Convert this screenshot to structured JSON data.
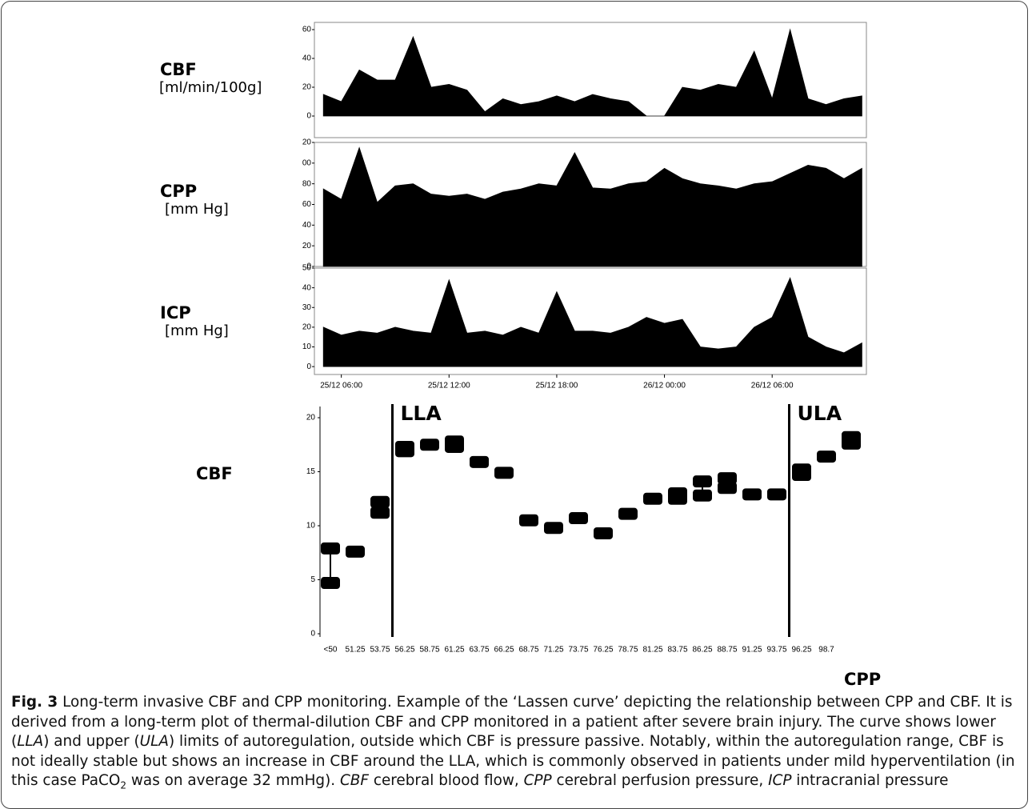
{
  "chart_data": [
    {
      "type": "area",
      "ylabel": "CBF",
      "yunit": "[ml/min/100g]",
      "color": "#000000",
      "x": [
        "25/12 05:00",
        "25/12 06:00",
        "25/12 07:00",
        "25/12 08:00",
        "25/12 09:00",
        "25/12 10:00",
        "25/12 11:00",
        "25/12 12:00",
        "25/12 13:00",
        "25/12 14:00",
        "25/12 15:00",
        "25/12 16:00",
        "25/12 17:00",
        "25/12 18:00",
        "25/12 19:00",
        "25/12 20:00",
        "25/12 21:00",
        "25/12 22:00",
        "25/12 23:00",
        "26/12 00:00",
        "26/12 01:00",
        "26/12 02:00",
        "26/12 03:00",
        "26/12 04:00",
        "26/12 05:00",
        "26/12 06:00",
        "26/12 07:00",
        "26/12 08:00",
        "26/12 09:00",
        "26/12 10:00",
        "26/12 11:00"
      ],
      "values": [
        15,
        10,
        32,
        25,
        25,
        55,
        20,
        22,
        18,
        3,
        12,
        8,
        10,
        14,
        10,
        15,
        12,
        10,
        0,
        0,
        20,
        18,
        22,
        20,
        45,
        12,
        60,
        12,
        8,
        12,
        14
      ],
      "xlim": [
        "25/12 04:30",
        "26/12 11:15"
      ],
      "ylim": [
        -15,
        65
      ],
      "yticks": [
        0,
        20,
        40,
        60
      ]
    },
    {
      "type": "area",
      "ylabel": "CPP",
      "yunit": "[mm Hg]",
      "color": "#000000",
      "x": [
        "25/12 05:00",
        "25/12 06:00",
        "25/12 07:00",
        "25/12 08:00",
        "25/12 09:00",
        "25/12 10:00",
        "25/12 11:00",
        "25/12 12:00",
        "25/12 13:00",
        "25/12 14:00",
        "25/12 15:00",
        "25/12 16:00",
        "25/12 17:00",
        "25/12 18:00",
        "25/12 19:00",
        "25/12 20:00",
        "25/12 21:00",
        "25/12 22:00",
        "25/12 23:00",
        "26/12 00:00",
        "26/12 01:00",
        "26/12 02:00",
        "26/12 03:00",
        "26/12 04:00",
        "26/12 05:00",
        "26/12 06:00",
        "26/12 07:00",
        "26/12 08:00",
        "26/12 09:00",
        "26/12 10:00",
        "26/12 11:00"
      ],
      "values": [
        75,
        65,
        115,
        62,
        78,
        80,
        70,
        68,
        70,
        65,
        72,
        75,
        80,
        78,
        110,
        76,
        75,
        80,
        82,
        95,
        85,
        80,
        78,
        75,
        80,
        82,
        90,
        98,
        95,
        85,
        95
      ],
      "xlim": [
        "25/12 04:30",
        "26/12 11:15"
      ],
      "ylim": [
        0,
        120
      ],
      "yticks": [
        0,
        20,
        40,
        60,
        80,
        {
          "value": 100,
          "label": "00"
        },
        {
          "value": 120,
          "label": "20"
        }
      ]
    },
    {
      "type": "area",
      "ylabel": "ICP",
      "yunit": "[mm Hg]",
      "color": "#000000",
      "x": [
        "25/12 05:00",
        "25/12 06:00",
        "25/12 07:00",
        "25/12 08:00",
        "25/12 09:00",
        "25/12 10:00",
        "25/12 11:00",
        "25/12 12:00",
        "25/12 13:00",
        "25/12 14:00",
        "25/12 15:00",
        "25/12 16:00",
        "25/12 17:00",
        "25/12 18:00",
        "25/12 19:00",
        "25/12 20:00",
        "25/12 21:00",
        "25/12 22:00",
        "25/12 23:00",
        "26/12 00:00",
        "26/12 01:00",
        "26/12 02:00",
        "26/12 03:00",
        "26/12 04:00",
        "26/12 05:00",
        "26/12 06:00",
        "26/12 07:00",
        "26/12 08:00",
        "26/12 09:00",
        "26/12 10:00",
        "26/12 11:00"
      ],
      "values": [
        20,
        16,
        18,
        17,
        20,
        18,
        17,
        44,
        17,
        18,
        16,
        20,
        17,
        38,
        18,
        18,
        17,
        20,
        25,
        22,
        24,
        10,
        9,
        10,
        20,
        25,
        45,
        15,
        10,
        7,
        12
      ],
      "xlim": [
        "25/12 04:30",
        "26/12 11:15"
      ],
      "ylim": [
        -4,
        50
      ],
      "yticks": [
        0,
        10,
        20,
        30,
        40,
        50
      ],
      "xticks": [
        "25/12 06:00",
        "25/12 12:00",
        "25/12 18:00",
        "26/12 00:00",
        "26/12 06:00"
      ]
    },
    {
      "type": "range",
      "ylabel": "CBF",
      "xlabel": "CPP",
      "color": "#000000",
      "categories": [
        "<50",
        "51.25",
        "53.75",
        "56.25",
        "58.75",
        "61.25",
        "63.75",
        "66.25",
        "68.75",
        "71.25",
        "73.75",
        "76.25",
        "78.75",
        "81.25",
        "83.75",
        "86.25",
        "88.75",
        "91.25",
        "93.75",
        "96.25",
        "98.7",
        null
      ],
      "low": [
        4.7,
        7.6,
        11.2,
        16.9,
        17.5,
        17.3,
        15.9,
        14.9,
        10.5,
        9.8,
        10.7,
        9.3,
        11.1,
        12.5,
        12.5,
        12.8,
        13.5,
        12.9,
        12.9,
        14.7,
        16.4,
        17.6
      ],
      "high": [
        7.9,
        7.6,
        12.2,
        17.3,
        17.5,
        17.8,
        15.9,
        14.9,
        10.5,
        9.8,
        10.7,
        9.3,
        11.1,
        12.5,
        13.0,
        14.1,
        14.4,
        12.9,
        12.9,
        15.2,
        16.4,
        18.2
      ],
      "ylim": [
        0,
        20
      ],
      "yticks": [
        0,
        5,
        10,
        15,
        20
      ],
      "annotations": [
        {
          "text": "LLA"
        },
        {
          "text": "ULA"
        }
      ]
    }
  ],
  "caption": {
    "label": "Fig. 3",
    "runs": [
      {
        "text": " Long-term invasive CBF and CPP monitoring. Example of the ‘Lassen curve’ depicting the relationship between CPP and CBF. It is derived from a long-term plot of thermal-dilution CBF and CPP monitored in a patient after severe brain injury. The curve shows lower ("
      },
      {
        "text": "LLA",
        "style": "italic"
      },
      {
        "text": ") and upper ("
      },
      {
        "text": "ULA",
        "style": "italic"
      },
      {
        "text": ") limits of autoregulation, outside which CBF is pressure passive. Notably, within the autoregulation range, CBF is not ideally stable but shows an increase in CBF around the LLA, which is commonly observed in patients under mild hyperventilation (in this case PaCO"
      },
      {
        "text": "2",
        "style": "sub"
      },
      {
        "text": " was on average 32 mmHg). "
      },
      {
        "text": "CBF",
        "style": "italic"
      },
      {
        "text": " cerebral blood flow, "
      },
      {
        "text": "CPP",
        "style": "italic"
      },
      {
        "text": " cerebral perfusion pressure, "
      },
      {
        "text": "ICP",
        "style": "italic"
      },
      {
        "text": " intracranial pressure"
      }
    ]
  }
}
